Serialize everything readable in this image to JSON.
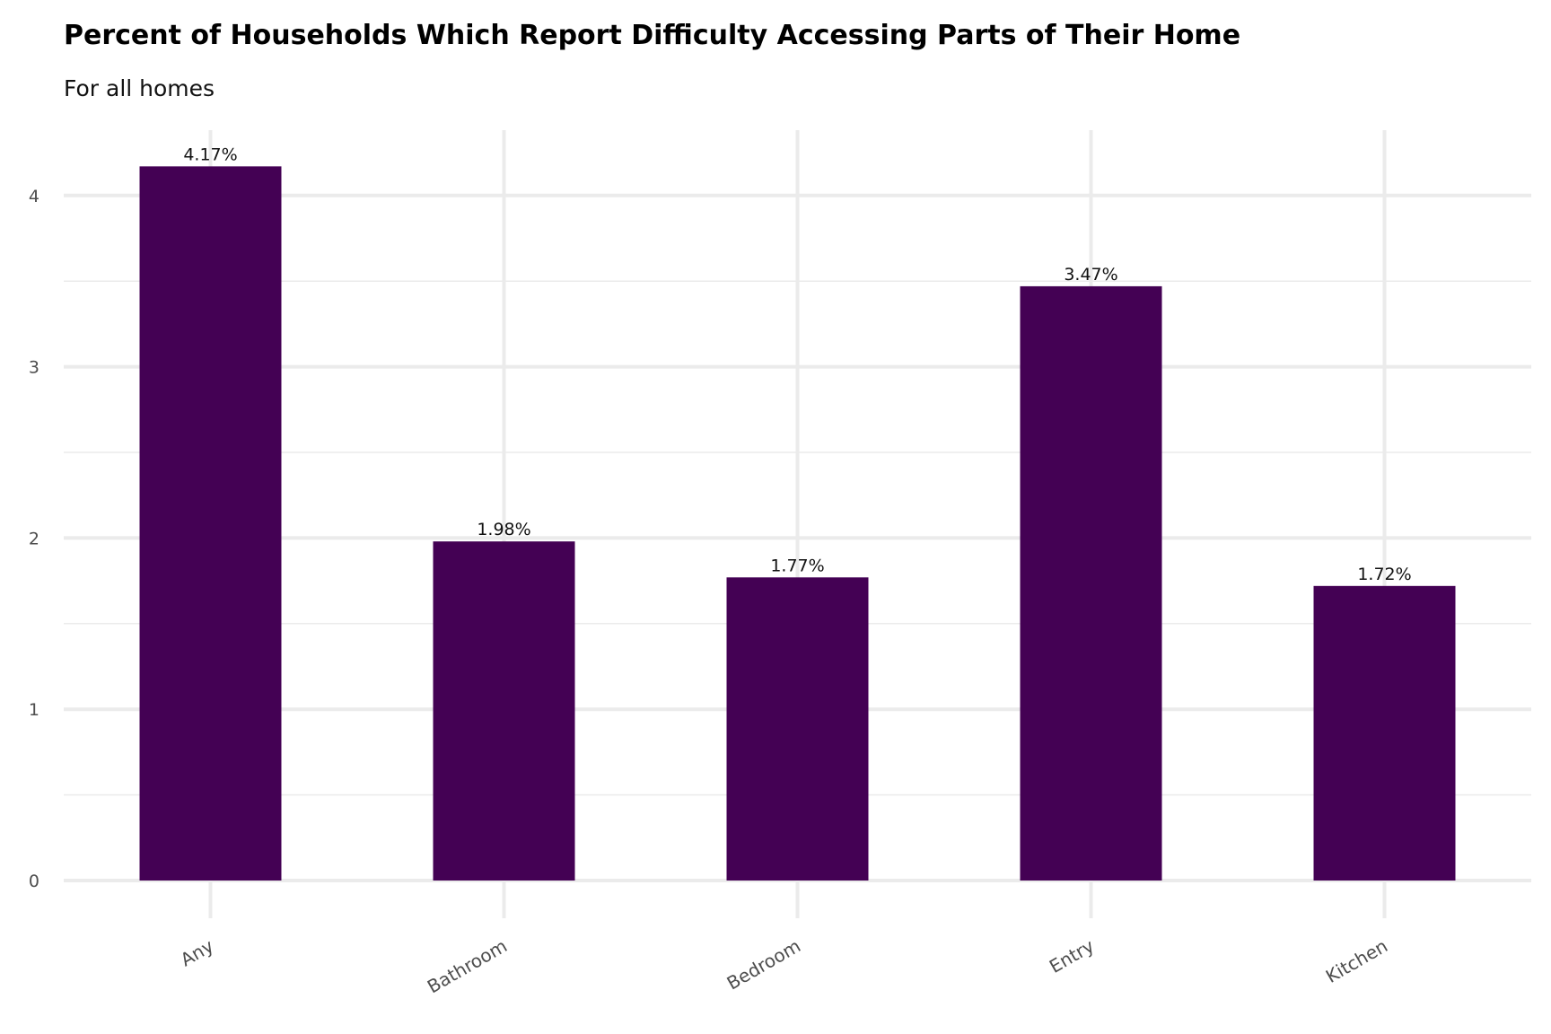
{
  "chart_data": {
    "type": "bar",
    "title": "Percent of Households Which Report Difficulty Accessing Parts of Their Home",
    "subtitle": "For all homes",
    "xlabel": "",
    "ylabel": "",
    "categories": [
      "Any",
      "Bathroom",
      "Bedroom",
      "Entry",
      "Kitchen"
    ],
    "values": [
      4.17,
      1.98,
      1.77,
      3.47,
      1.72
    ],
    "data_labels": [
      "4.17%",
      "1.98%",
      "1.77%",
      "3.47%",
      "1.72%"
    ],
    "ylim": [
      0,
      4.4
    ],
    "yticks": [
      0,
      1,
      2,
      3,
      4
    ],
    "ytick_labels": [
      "0",
      "1",
      "2",
      "3",
      "4"
    ],
    "grid": true,
    "bar_color": "#440154"
  }
}
